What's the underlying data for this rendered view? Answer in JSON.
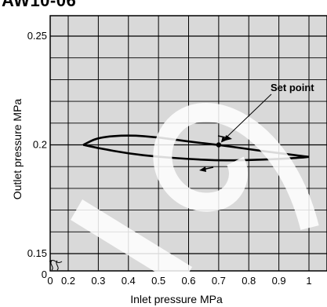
{
  "figure_title": "AW10-06",
  "chart_data": {
    "type": "line",
    "xlabel": "Inlet pressure  MPa",
    "ylabel": "Outlet pressure  MPa",
    "xlim": [
      0,
      1.0
    ],
    "ylim": [
      0.15,
      0.25
    ],
    "x_ticks": [
      "0",
      "0.2",
      "0.3",
      "0.4",
      "0.5",
      "0.6",
      "0.7",
      "0.8",
      "0.9",
      "1"
    ],
    "y_ticks": [
      "0.15",
      "0.2",
      "0.25"
    ],
    "grid": true,
    "axis_break": true,
    "series": [
      {
        "x": [
          0.25,
          0.3,
          0.4,
          0.5,
          0.6,
          0.7,
          0.8,
          0.9,
          0.98,
          1.0
        ],
        "y": [
          0.2,
          0.2035,
          0.2045,
          0.2035,
          0.2015,
          0.2,
          0.198,
          0.1962,
          0.1948,
          0.1945
        ]
      },
      {
        "x": [
          0.25,
          0.3,
          0.4,
          0.5,
          0.6,
          0.7,
          0.8,
          0.9,
          0.98,
          1.0
        ],
        "y": [
          0.2,
          0.1985,
          0.196,
          0.1945,
          0.1935,
          0.1928,
          0.193,
          0.1935,
          0.1942,
          0.1945
        ]
      }
    ],
    "annotations": [
      {
        "text": "Set point",
        "x": 0.7,
        "y": 0.2
      }
    ],
    "watermark": "IC",
    "colors": {
      "plot_bg": "#d9d9d9",
      "grid": "#000000",
      "watermark": "#ffffff",
      "curve": "#000000"
    }
  }
}
